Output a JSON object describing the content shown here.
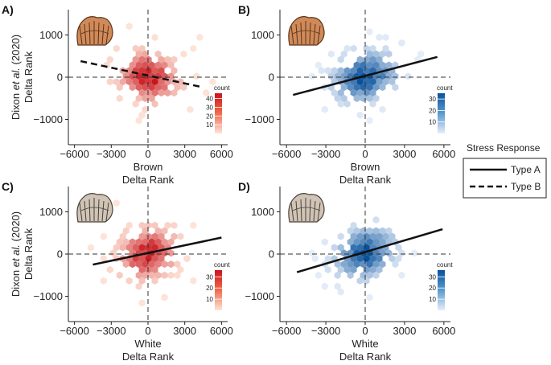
{
  "figure": {
    "legend": {
      "title": "Stress Response",
      "items": [
        {
          "label": "Type A",
          "style": "solid"
        },
        {
          "label": "Type B",
          "style": "dashed"
        }
      ]
    }
  },
  "chart_data": [
    {
      "panel": "A)",
      "type": "hexbin_scatter",
      "palette": "red",
      "color_low": "#fde4d8",
      "color_high": "#c9141c",
      "xlabel_line1": "Brown",
      "xlabel_line2": "Delta Rank",
      "ylabel_line1": "Dixon et al. (2020)",
      "ylabel_line2": "Delta Rank",
      "xlim": [
        -6500,
        6500
      ],
      "ylim": [
        -1600,
        1600
      ],
      "xticks": [
        -6000,
        -3000,
        0,
        3000,
        6000
      ],
      "xtick_labels": [
        "−6000",
        "−3000",
        "0",
        "3000",
        "6000"
      ],
      "yticks": [
        -1000,
        0,
        1000
      ],
      "ytick_labels": [
        "−1000",
        "0",
        "1000"
      ],
      "colorbar": {
        "title": "count",
        "ticks": [
          10,
          20,
          30,
          40
        ],
        "max": 46
      },
      "fit_line": {
        "style": "dashed",
        "x": [
          -5500,
          4500
        ],
        "y": [
          380,
          -240
        ]
      },
      "density": {
        "peak": 46,
        "spread_x": 1800,
        "spread_y": 420,
        "seed": 11
      }
    },
    {
      "panel": "B)",
      "type": "hexbin_scatter",
      "palette": "blue",
      "color_low": "#e6eef9",
      "color_high": "#08519c",
      "xlabel_line1": "Brown",
      "xlabel_line2": "Delta Rank",
      "ylabel_line1": "",
      "ylabel_line2": "",
      "xlim": [
        -6500,
        6500
      ],
      "ylim": [
        -1600,
        1600
      ],
      "xticks": [
        -6000,
        -3000,
        0,
        3000,
        6000
      ],
      "xtick_labels": [
        "−6000",
        "−3000",
        "0",
        "3000",
        "6000"
      ],
      "yticks": [
        -1000,
        0,
        1000
      ],
      "ytick_labels": [
        "−1000",
        "0",
        "1000"
      ],
      "colorbar": {
        "title": "count",
        "ticks": [
          10,
          20,
          30
        ],
        "max": 35
      },
      "fit_line": {
        "style": "solid",
        "x": [
          -5500,
          5500
        ],
        "y": [
          -420,
          480
        ]
      },
      "density": {
        "peak": 35,
        "spread_x": 1800,
        "spread_y": 430,
        "seed": 23
      }
    },
    {
      "panel": "C)",
      "type": "hexbin_scatter",
      "palette": "red",
      "color_low": "#fde4d8",
      "color_high": "#c9141c",
      "xlabel_line1": "White",
      "xlabel_line2": "Delta Rank",
      "ylabel_line1": "Dixon et al. (2020)",
      "ylabel_line2": "Delta Rank",
      "xlim": [
        -6500,
        6500
      ],
      "ylim": [
        -1600,
        1600
      ],
      "xticks": [
        -6000,
        -3000,
        0,
        3000,
        6000
      ],
      "xtick_labels": [
        "−6000",
        "−3000",
        "0",
        "3000",
        "6000"
      ],
      "yticks": [
        -1000,
        0,
        1000
      ],
      "ytick_labels": [
        "−1000",
        "0",
        "1000"
      ],
      "colorbar": {
        "title": "count",
        "ticks": [
          10,
          20,
          30
        ],
        "max": 36
      },
      "fit_line": {
        "style": "solid",
        "x": [
          -4500,
          6000
        ],
        "y": [
          -250,
          390
        ]
      },
      "density": {
        "peak": 36,
        "spread_x": 1700,
        "spread_y": 430,
        "seed": 37
      }
    },
    {
      "panel": "D)",
      "type": "hexbin_scatter",
      "palette": "blue",
      "color_low": "#e6eef9",
      "color_high": "#08519c",
      "xlabel_line1": "White",
      "xlabel_line2": "Delta Rank",
      "ylabel_line1": "",
      "ylabel_line2": "",
      "xlim": [
        -6500,
        6500
      ],
      "ylim": [
        -1600,
        1600
      ],
      "xticks": [
        -6000,
        -3000,
        0,
        3000,
        6000
      ],
      "xtick_labels": [
        "−6000",
        "−3000",
        "0",
        "3000",
        "6000"
      ],
      "yticks": [
        -1000,
        0,
        1000
      ],
      "ytick_labels": [
        "−1000",
        "0",
        "1000"
      ],
      "colorbar": {
        "title": "count",
        "ticks": [
          10,
          20,
          30
        ],
        "max": 36
      },
      "fit_line": {
        "style": "solid",
        "x": [
          -5200,
          5900
        ],
        "y": [
          -430,
          590
        ]
      },
      "density": {
        "peak": 36,
        "spread_x": 1700,
        "spread_y": 440,
        "seed": 53
      }
    }
  ]
}
